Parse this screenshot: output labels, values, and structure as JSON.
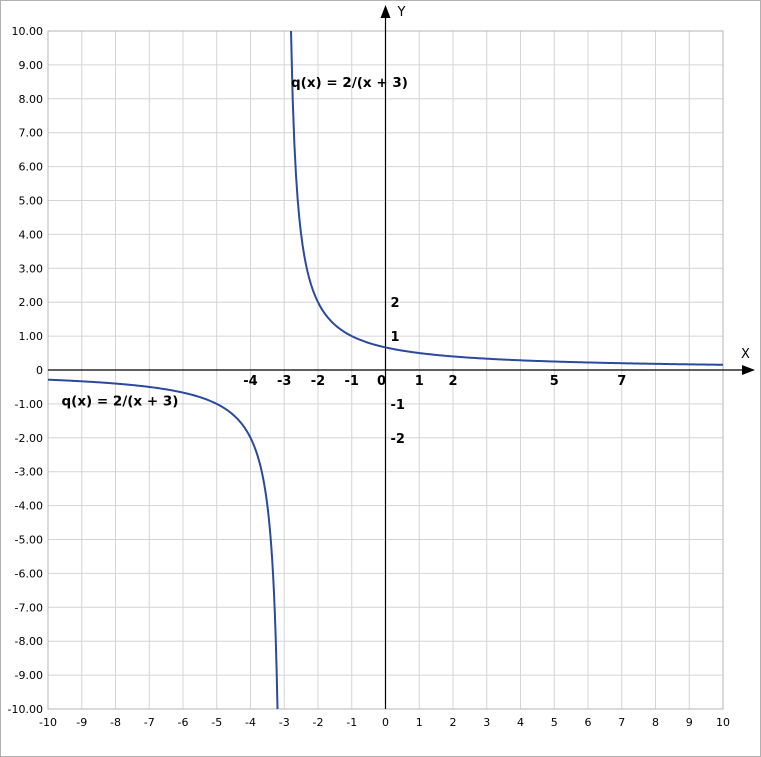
{
  "colors": {
    "curve": "#2b4a9c",
    "grid": "#d4d4d4",
    "axis": "#000000"
  },
  "axis_names": {
    "x": "X",
    "y": "Y"
  },
  "chart_data": {
    "type": "line",
    "title": "",
    "xlabel": "X",
    "ylabel": "Y",
    "xlim": [
      -10,
      10
    ],
    "ylim": [
      -10,
      10
    ],
    "grid": true,
    "x_ticks": [
      {
        "v": -10,
        "t": "-10"
      },
      {
        "v": -9,
        "t": "-9"
      },
      {
        "v": -8,
        "t": "-8"
      },
      {
        "v": -7,
        "t": "-7"
      },
      {
        "v": -6,
        "t": "-6"
      },
      {
        "v": -5,
        "t": "-5"
      },
      {
        "v": -4,
        "t": "-4"
      },
      {
        "v": -3,
        "t": "-3"
      },
      {
        "v": -2,
        "t": "-2"
      },
      {
        "v": -1,
        "t": "-1"
      },
      {
        "v": 0,
        "t": "0"
      },
      {
        "v": 1,
        "t": "1"
      },
      {
        "v": 2,
        "t": "2"
      },
      {
        "v": 3,
        "t": "3"
      },
      {
        "v": 4,
        "t": "4"
      },
      {
        "v": 5,
        "t": "5"
      },
      {
        "v": 6,
        "t": "6"
      },
      {
        "v": 7,
        "t": "7"
      },
      {
        "v": 8,
        "t": "8"
      },
      {
        "v": 9,
        "t": "9"
      },
      {
        "v": 10,
        "t": "10"
      }
    ],
    "y_ticks": [
      {
        "v": 10,
        "t": "10.00"
      },
      {
        "v": 9,
        "t": "9.00"
      },
      {
        "v": 8,
        "t": "8.00"
      },
      {
        "v": 7,
        "t": "7.00"
      },
      {
        "v": 6,
        "t": "6.00"
      },
      {
        "v": 5,
        "t": "5.00"
      },
      {
        "v": 4,
        "t": "4.00"
      },
      {
        "v": 3,
        "t": "3.00"
      },
      {
        "v": 2,
        "t": "2.00"
      },
      {
        "v": 1,
        "t": "1.00"
      },
      {
        "v": 0,
        "t": "0"
      },
      {
        "v": -1,
        "t": "-1.00"
      },
      {
        "v": -2,
        "t": "-2.00"
      },
      {
        "v": -3,
        "t": "-3.00"
      },
      {
        "v": -4,
        "t": "-4.00"
      },
      {
        "v": -5,
        "t": "-5.00"
      },
      {
        "v": -6,
        "t": "-6.00"
      },
      {
        "v": -7,
        "t": "-7.00"
      },
      {
        "v": -8,
        "t": "-8.00"
      },
      {
        "v": -9,
        "t": "-9.00"
      },
      {
        "v": -10,
        "t": "-10.00"
      }
    ],
    "inner_x_labels": [
      {
        "v": -4,
        "t": "-4"
      },
      {
        "v": -3,
        "t": "-3"
      },
      {
        "v": -2,
        "t": "-2"
      },
      {
        "v": -1,
        "t": "-1"
      },
      {
        "v": 0,
        "t": "0"
      },
      {
        "v": 1,
        "t": "1"
      },
      {
        "v": 2,
        "t": "2"
      },
      {
        "v": 5,
        "t": "5"
      },
      {
        "v": 7,
        "t": "7"
      }
    ],
    "inner_y_labels": [
      {
        "v": 2,
        "t": "2"
      },
      {
        "v": 1,
        "t": "1"
      },
      {
        "v": -1,
        "t": "-1"
      },
      {
        "v": -2,
        "t": "-2"
      }
    ],
    "annotations": [
      {
        "text": "q(x) = 2/(x + 3)",
        "x": -2.8,
        "y": 8.5
      },
      {
        "text": "q(x) = 2/(x + 3)",
        "x": -9.6,
        "y": -0.9
      }
    ],
    "series": [
      {
        "branch": "right",
        "x": [
          -2.8,
          -2.75,
          -2.7,
          -2.6,
          -2.5,
          -2.4,
          -2.2,
          -2,
          -1.5,
          -1,
          -0.5,
          0,
          1,
          2,
          3,
          4,
          5,
          6,
          7,
          8,
          9,
          10
        ],
        "y": [
          10,
          8,
          6.67,
          5,
          4,
          3.33,
          2.5,
          2,
          1.33,
          1,
          0.8,
          0.67,
          0.5,
          0.4,
          0.33,
          0.29,
          0.25,
          0.22,
          0.2,
          0.18,
          0.17,
          0.15
        ]
      },
      {
        "branch": "left",
        "x": [
          -10,
          -9,
          -8,
          -7,
          -6,
          -5,
          -4.5,
          -4,
          -3.75,
          -3.6,
          -3.5,
          -3.4,
          -3.3,
          -3.25,
          -3.2
        ],
        "y": [
          -0.29,
          -0.33,
          -0.4,
          -0.5,
          -0.67,
          -1,
          -1.33,
          -2,
          -2.67,
          -3.33,
          -4,
          -5,
          -6.67,
          -8,
          -10
        ]
      }
    ]
  }
}
